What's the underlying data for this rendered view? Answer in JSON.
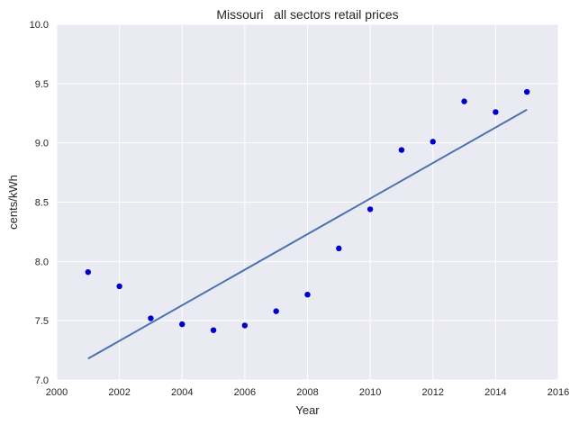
{
  "chart_data": {
    "type": "scatter",
    "title": "Missouri   all sectors retail prices",
    "xlabel": "Year",
    "ylabel": "cents/kWh",
    "xlim": [
      2000,
      2016
    ],
    "ylim": [
      7.0,
      10.0
    ],
    "xticks": [
      2000,
      2002,
      2004,
      2006,
      2008,
      2010,
      2012,
      2014,
      2016
    ],
    "yticks": [
      "7.0",
      "7.5",
      "8.0",
      "8.5",
      "9.0",
      "9.5",
      "10.0"
    ],
    "grid": true,
    "colors": {
      "background": "#eaeaf2",
      "grid": "#ffffff",
      "points": "#0000cc",
      "trend": "#4c72b0"
    },
    "series": [
      {
        "x": [
          2001,
          2002,
          2003,
          2004,
          2005,
          2006,
          2007,
          2008,
          2009,
          2010,
          2011,
          2012,
          2013,
          2014,
          2015
        ],
        "values": [
          7.91,
          7.79,
          7.52,
          7.47,
          7.42,
          7.46,
          7.58,
          7.72,
          8.11,
          8.44,
          8.94,
          9.01,
          9.35,
          9.26,
          9.43
        ]
      }
    ],
    "trend_line": {
      "x": [
        2001,
        2015
      ],
      "values": [
        7.18,
        9.28
      ]
    }
  }
}
